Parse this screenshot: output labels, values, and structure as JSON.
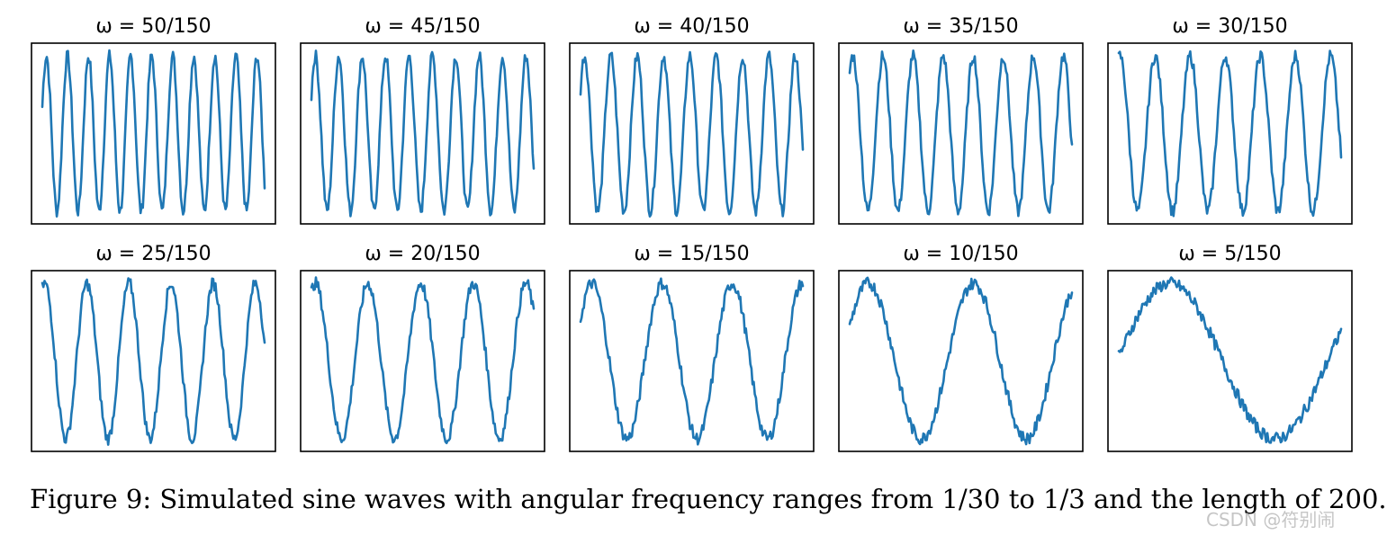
{
  "figure": {
    "caption": "Figure 9: Simulated sine waves with angular frequency ranges from 1/30 to 1/3 and the length of 200.",
    "watermark": "CSDN @符别闹",
    "line_color": "#1f77b4"
  },
  "chart_data": [
    {
      "type": "line",
      "title": "ω = 50/150",
      "omega": "50/150",
      "x": [
        0,
        200
      ],
      "grid": false,
      "axes_ticks": false
    },
    {
      "type": "line",
      "title": "ω = 45/150",
      "omega": "45/150",
      "x": [
        0,
        200
      ],
      "grid": false,
      "axes_ticks": false
    },
    {
      "type": "line",
      "title": "ω = 40/150",
      "omega": "40/150",
      "x": [
        0,
        200
      ],
      "grid": false,
      "axes_ticks": false
    },
    {
      "type": "line",
      "title": "ω = 35/150",
      "omega": "35/150",
      "x": [
        0,
        200
      ],
      "grid": false,
      "axes_ticks": false
    },
    {
      "type": "line",
      "title": "ω = 30/150",
      "omega": "30/150",
      "x": [
        0,
        200
      ],
      "grid": false,
      "axes_ticks": false
    },
    {
      "type": "line",
      "title": "ω = 25/150",
      "omega": "25/150",
      "x": [
        0,
        200
      ],
      "grid": false,
      "axes_ticks": false
    },
    {
      "type": "line",
      "title": "ω = 20/150",
      "omega": "20/150",
      "x": [
        0,
        200
      ],
      "grid": false,
      "axes_ticks": false
    },
    {
      "type": "line",
      "title": "ω = 15/150",
      "omega": "15/150",
      "x": [
        0,
        200
      ],
      "grid": false,
      "axes_ticks": false
    },
    {
      "type": "line",
      "title": "ω = 10/150",
      "omega": "10/150",
      "x": [
        0,
        200
      ],
      "grid": false,
      "axes_ticks": false
    },
    {
      "type": "line",
      "title": "ω = 5/150",
      "omega": "5/150",
      "x": [
        0,
        200
      ],
      "grid": false,
      "axes_ticks": false
    }
  ]
}
